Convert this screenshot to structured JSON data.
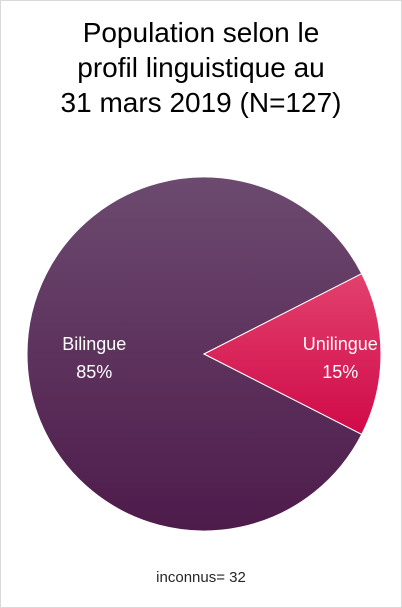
{
  "chart_data": {
    "type": "pie",
    "title_lines": [
      "Population selon le",
      "profil linguistique au",
      "31 mars 2019 (N=127)"
    ],
    "slices": [
      {
        "label": "Bilingue",
        "value": 85,
        "display": "85%",
        "color": "#5a2a57"
      },
      {
        "label": "Unilingue",
        "value": 15,
        "display": "15%",
        "color": "#d8114f"
      }
    ],
    "note": "inconnus= 32",
    "legend": "none"
  }
}
